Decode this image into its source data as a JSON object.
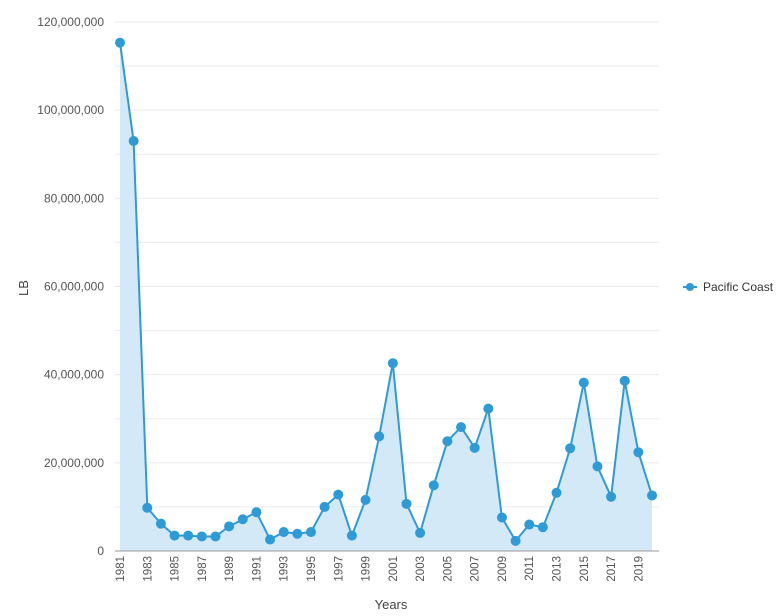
{
  "chart_data": {
    "type": "area",
    "xlabel": "Years",
    "ylabel": "LB",
    "ylim": [
      0,
      120000000
    ],
    "yticks": [
      0,
      20000000,
      40000000,
      60000000,
      80000000,
      100000000,
      120000000
    ],
    "ytick_labels": [
      "0",
      "20,000,000",
      "40,000,000",
      "60,000,000",
      "80,000,000",
      "100,000,000",
      "120,000,000"
    ],
    "x": [
      1981,
      1982,
      1983,
      1984,
      1985,
      1986,
      1987,
      1988,
      1989,
      1990,
      1991,
      1992,
      1993,
      1994,
      1995,
      1996,
      1997,
      1998,
      1999,
      2000,
      2001,
      2002,
      2003,
      2004,
      2005,
      2006,
      2007,
      2008,
      2009,
      2010,
      2011,
      2012,
      2013,
      2014,
      2015,
      2016,
      2017,
      2018,
      2019,
      2020
    ],
    "xtick_labels": [
      "1981",
      "1983",
      "1985",
      "1987",
      "1989",
      "1991",
      "1993",
      "1995",
      "1997",
      "1999",
      "2001",
      "2003",
      "2005",
      "2007",
      "2009",
      "2011",
      "2013",
      "2015",
      "2017",
      "2019"
    ],
    "grid": true,
    "legend_position": "right",
    "series": [
      {
        "name": "Pacific Coast",
        "color": "#2e9bd6",
        "fill": "#d3e9f7",
        "values": [
          115300000,
          93000000,
          9800000,
          6200000,
          3500000,
          3500000,
          3300000,
          3300000,
          5600000,
          7200000,
          8800000,
          2600000,
          4300000,
          3900000,
          4300000,
          10000000,
          12800000,
          3500000,
          11600000,
          26000000,
          42600000,
          10700000,
          4100000,
          14900000,
          24900000,
          28100000,
          23400000,
          32300000,
          7600000,
          2300000,
          6000000,
          5400000,
          13200000,
          23300000,
          38200000,
          19200000,
          12300000,
          38600000,
          22400000,
          12600000
        ]
      }
    ]
  }
}
